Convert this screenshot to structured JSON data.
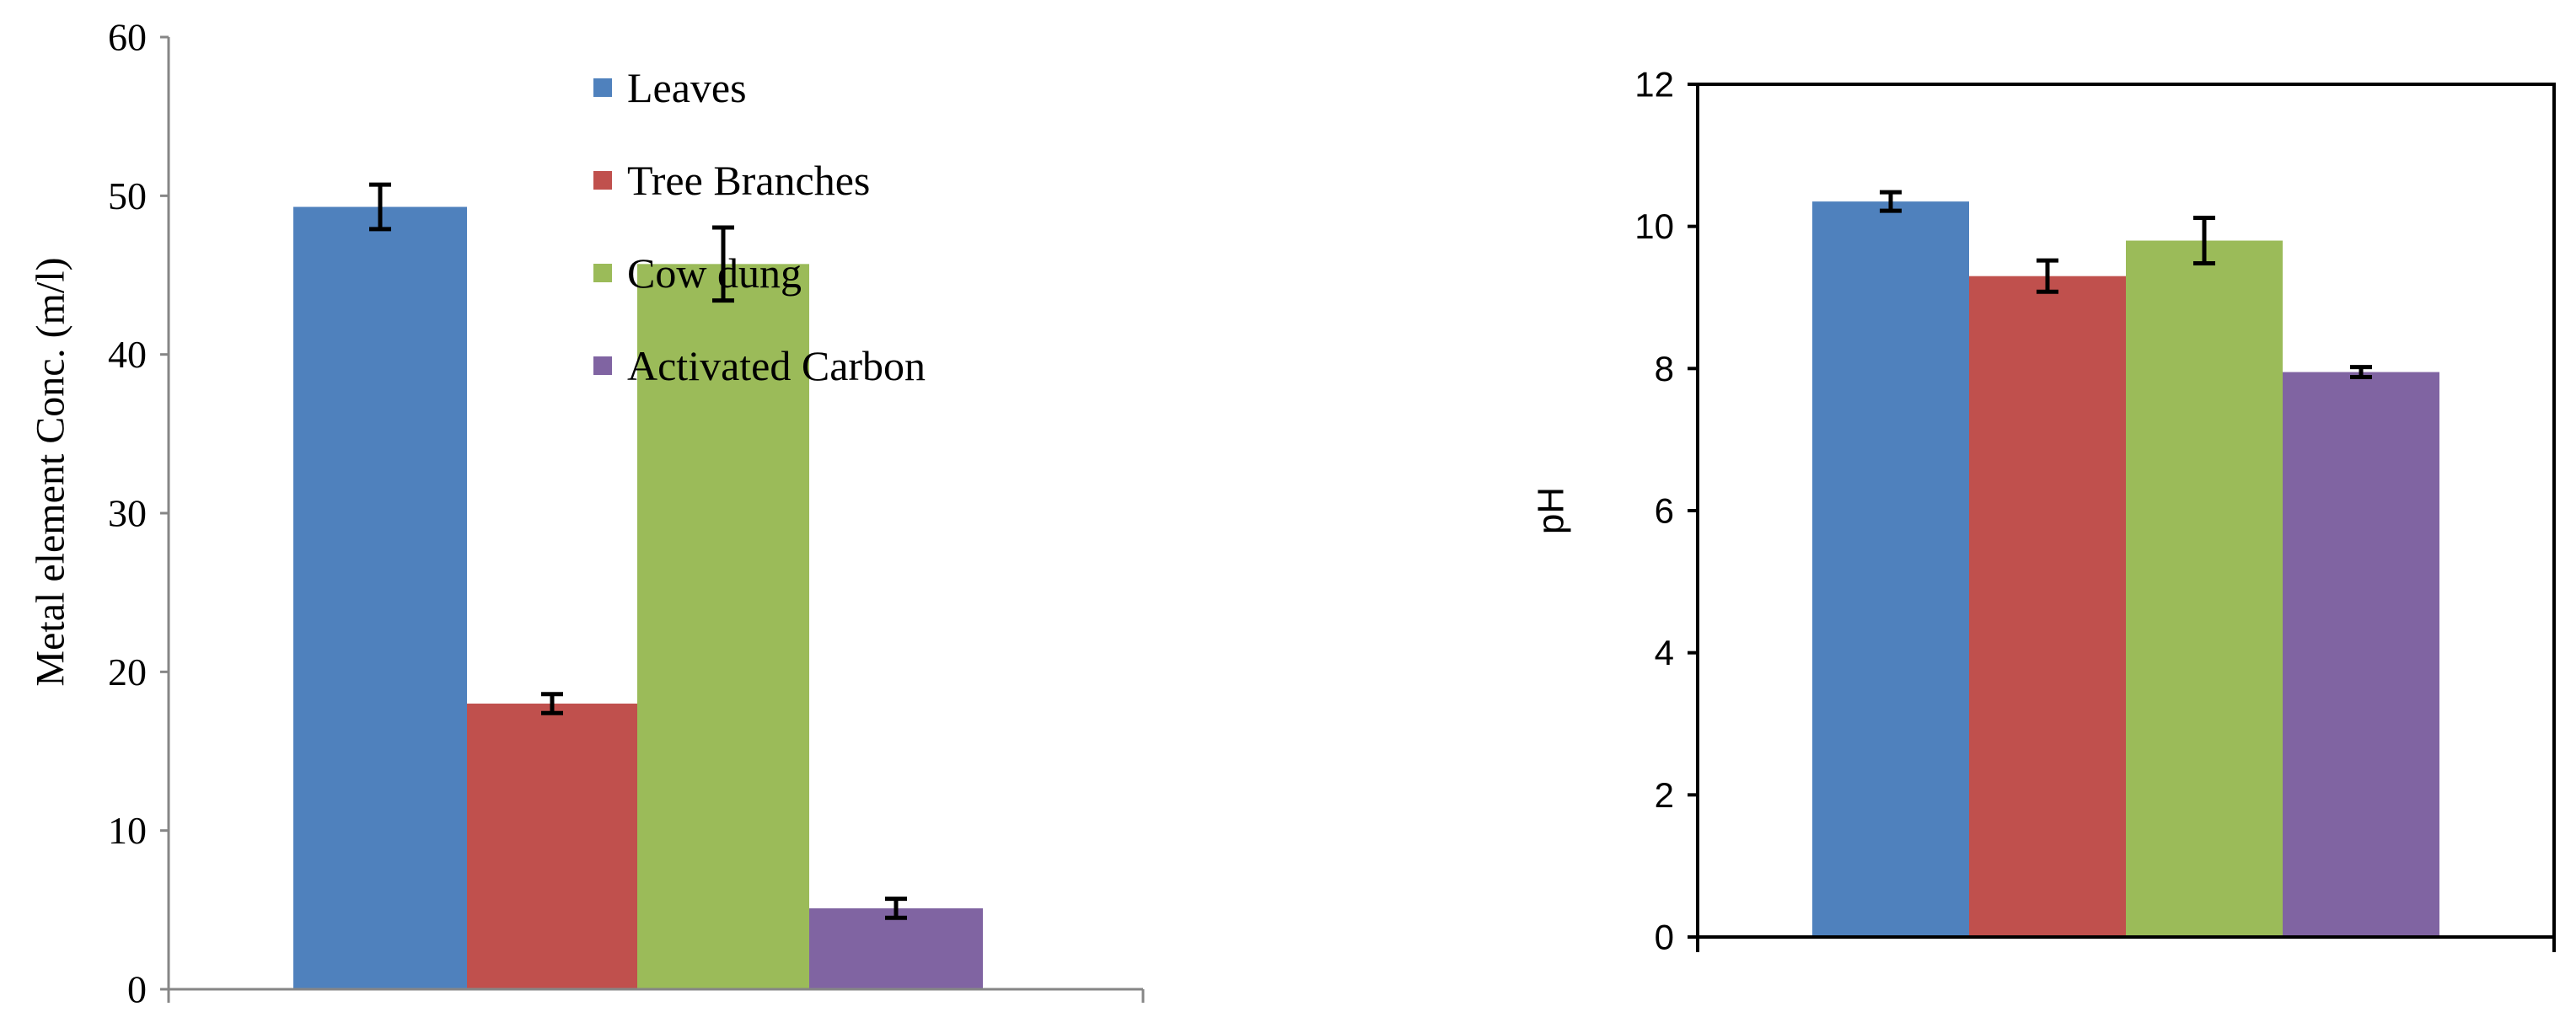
{
  "charts": [
    {
      "type": "bar",
      "ylabel": "Metal element Conc. (m/l)",
      "ylim": [
        0,
        60
      ],
      "yticks": [
        "0",
        "10",
        "20",
        "30",
        "40",
        "50",
        "60"
      ],
      "series": [
        {
          "name": "Leaves",
          "color": "#4f81bd",
          "value": 49.3,
          "error": 1.4
        },
        {
          "name": "Tree Branches",
          "color": "#c0504d",
          "value": 18.0,
          "error": 0.6
        },
        {
          "name": "Cow dung",
          "color": "#9bbb59",
          "value": 45.7,
          "error": 2.3
        },
        {
          "name": "Activated Carbon",
          "color": "#8064a2",
          "value": 5.1,
          "error": 0.6
        }
      ],
      "legend": "inside-top-right",
      "grid": false
    },
    {
      "type": "bar",
      "ylabel": "pH",
      "ylim": [
        0,
        12
      ],
      "yticks": [
        "0",
        "2",
        "4",
        "6",
        "8",
        "10",
        "12"
      ],
      "series": [
        {
          "color": "#4f81bd",
          "value": 10.35,
          "error": 0.13
        },
        {
          "color": "#c0504d",
          "value": 9.3,
          "error": 0.22
        },
        {
          "color": "#9bbb59",
          "value": 9.8,
          "error": 0.32
        },
        {
          "color": "#8064a2",
          "value": 7.95,
          "error": 0.07
        }
      ],
      "legend": "none",
      "grid": false
    }
  ]
}
